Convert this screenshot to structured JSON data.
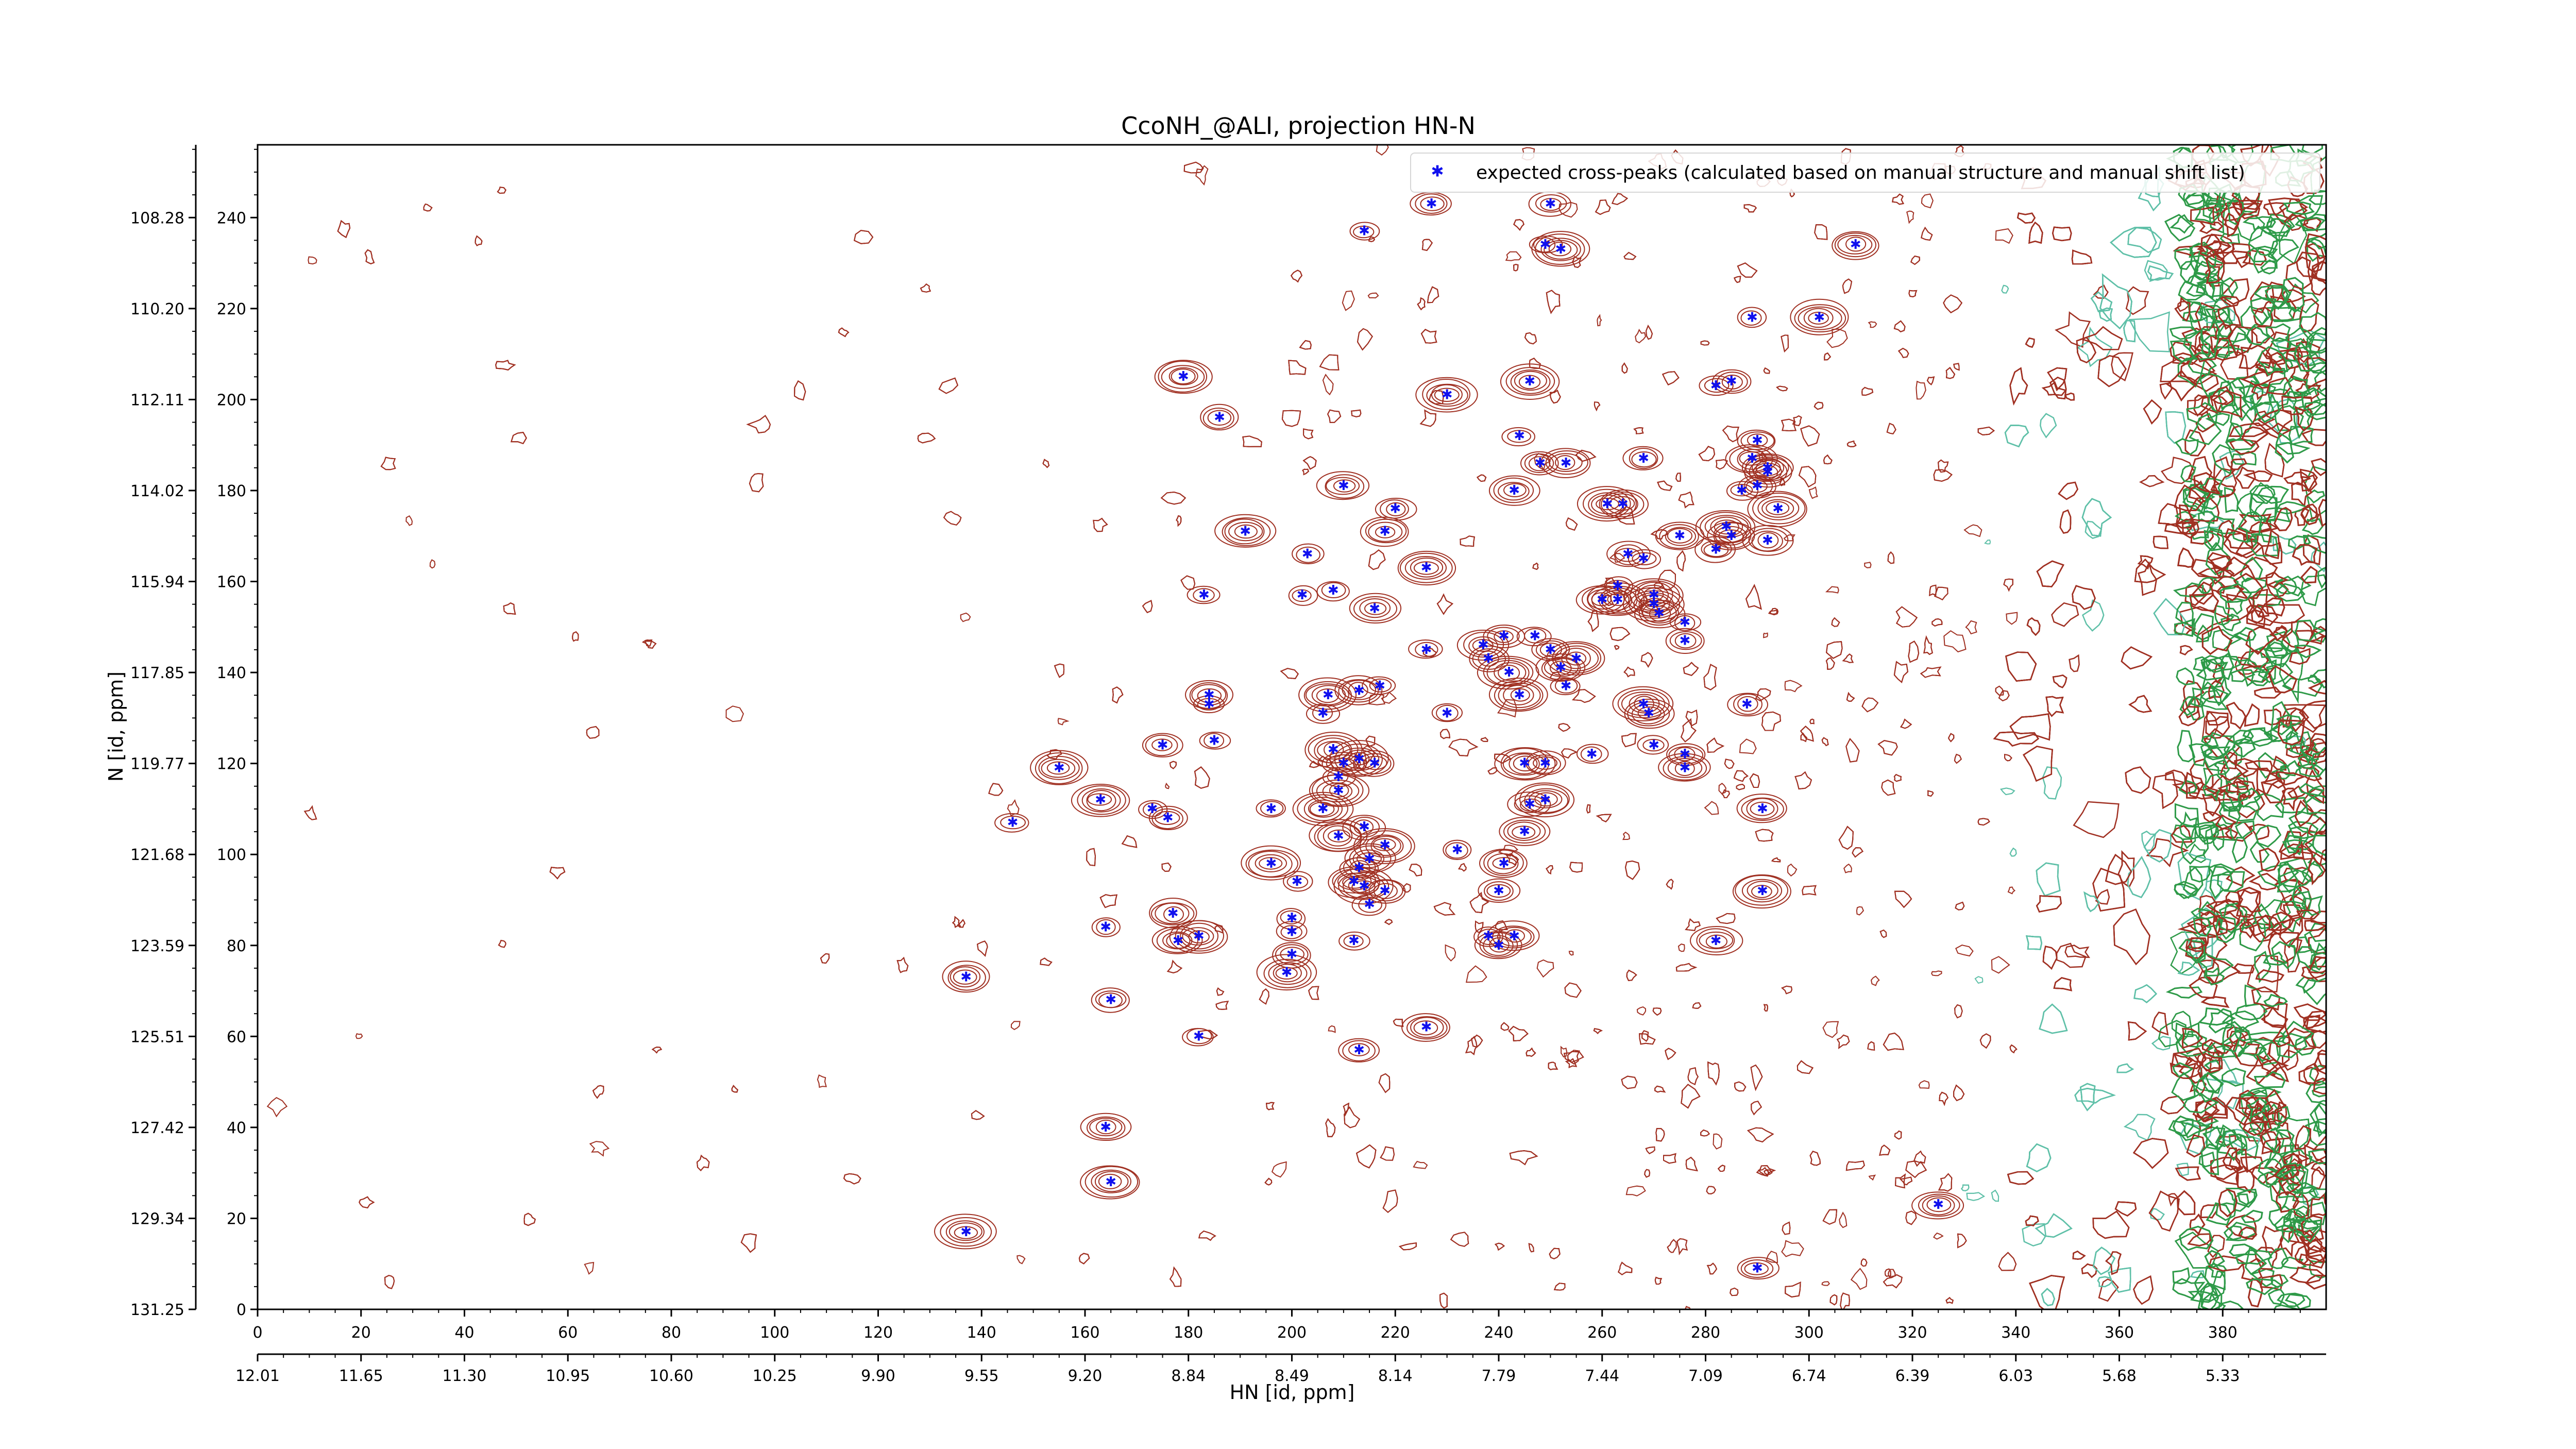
{
  "chart_data": {
    "type": "scatter",
    "title": "CcoNH_@ALI, projection HN-N",
    "xlabel": "HN [id, ppm]",
    "ylabel": "N [id, ppm]",
    "xlim": [
      0,
      400
    ],
    "ylim": [
      0,
      256
    ],
    "x_ticks": [
      0,
      20,
      40,
      60,
      80,
      100,
      120,
      140,
      160,
      180,
      200,
      220,
      240,
      260,
      280,
      300,
      320,
      340,
      360,
      380
    ],
    "x_ppm_ticks": [
      "12.01",
      "11.65",
      "11.30",
      "10.95",
      "10.60",
      "10.25",
      "9.90",
      "9.55",
      "9.20",
      "8.84",
      "8.49",
      "8.14",
      "7.79",
      "7.44",
      "7.09",
      "6.74",
      "6.39",
      "6.03",
      "5.68",
      "5.33"
    ],
    "y_ticks": [
      0,
      20,
      40,
      60,
      80,
      100,
      120,
      140,
      160,
      180,
      200,
      220,
      240
    ],
    "y_ppm_ticks": [
      "131.25",
      "129.34",
      "127.42",
      "125.51",
      "123.59",
      "121.68",
      "119.77",
      "117.85",
      "115.94",
      "114.02",
      "112.11",
      "110.20",
      "108.28"
    ],
    "grid": false,
    "legend_position": "top-right",
    "colors": {
      "peaks": "#1010ee",
      "contour_positive": "#a03022",
      "contour_negative": "#2e9a48",
      "contour_faint": "#5fc0a8",
      "axis": "#000000"
    },
    "series": [
      {
        "name": "expected cross-peaks (calculated based on manual structure and manual shift list)",
        "points": [
          [
            137,
            17
          ],
          [
            165,
            28
          ],
          [
            164,
            40
          ],
          [
            182,
            60
          ],
          [
            165,
            68
          ],
          [
            137,
            73
          ],
          [
            200,
            78
          ],
          [
            199,
            74
          ],
          [
            164,
            84
          ],
          [
            178,
            81
          ],
          [
            182,
            82
          ],
          [
            177,
            87
          ],
          [
            200,
            86
          ],
          [
            200,
            83
          ],
          [
            212,
            81
          ],
          [
            213,
            57
          ],
          [
            226,
            62
          ],
          [
            196,
            98
          ],
          [
            201,
            94
          ],
          [
            209,
            104
          ],
          [
            212,
            94
          ],
          [
            214,
            93
          ],
          [
            215,
            89
          ],
          [
            218,
            92
          ],
          [
            215,
            99
          ],
          [
            218,
            102
          ],
          [
            213,
            97
          ],
          [
            214,
            106
          ],
          [
            210,
            120
          ],
          [
            208,
            123
          ],
          [
            213,
            121
          ],
          [
            216,
            120
          ],
          [
            196,
            110
          ],
          [
            206,
            110
          ],
          [
            209,
            114
          ],
          [
            209,
            117
          ],
          [
            163,
            112
          ],
          [
            155,
            119
          ],
          [
            146,
            107
          ],
          [
            173,
            110
          ],
          [
            176,
            108
          ],
          [
            185,
            125
          ],
          [
            175,
            124
          ],
          [
            184,
            135
          ],
          [
            184,
            133
          ],
          [
            206,
            131
          ],
          [
            207,
            135
          ],
          [
            213,
            136
          ],
          [
            217,
            137
          ],
          [
            230,
            131
          ],
          [
            226,
            145
          ],
          [
            216,
            154
          ],
          [
            202,
            157
          ],
          [
            208,
            158
          ],
          [
            203,
            166
          ],
          [
            218,
            171
          ],
          [
            210,
            181
          ],
          [
            220,
            176
          ],
          [
            226,
            163
          ],
          [
            183,
            157
          ],
          [
            191,
            171
          ],
          [
            186,
            196
          ],
          [
            179,
            205
          ],
          [
            230,
            201
          ],
          [
            214,
            237
          ],
          [
            227,
            243
          ],
          [
            250,
            243
          ],
          [
            249,
            234
          ],
          [
            252,
            233
          ],
          [
            246,
            204
          ],
          [
            244,
            192
          ],
          [
            243,
            180
          ],
          [
            248,
            186
          ],
          [
            253,
            186
          ],
          [
            261,
            177
          ],
          [
            264,
            177
          ],
          [
            268,
            187
          ],
          [
            287,
            180
          ],
          [
            289,
            187
          ],
          [
            290,
            191
          ],
          [
            292,
            185
          ],
          [
            285,
            204
          ],
          [
            282,
            203
          ],
          [
            290,
            181
          ],
          [
            302,
            218
          ],
          [
            289,
            218
          ],
          [
            309,
            234
          ],
          [
            292,
            184
          ],
          [
            294,
            176
          ],
          [
            292,
            169
          ],
          [
            282,
            167
          ],
          [
            284,
            172
          ],
          [
            288,
            133
          ],
          [
            291,
            110
          ],
          [
            291,
            92
          ],
          [
            282,
            81
          ],
          [
            290,
            9
          ],
          [
            325,
            23
          ],
          [
            243,
            82
          ],
          [
            232,
            101
          ],
          [
            238,
            82
          ],
          [
            240,
            92
          ],
          [
            240,
            80
          ],
          [
            241,
            98
          ],
          [
            245,
            105
          ],
          [
            246,
            111
          ],
          [
            249,
            112
          ],
          [
            249,
            120
          ],
          [
            245,
            120
          ],
          [
            244,
            135
          ],
          [
            242,
            140
          ],
          [
            241,
            148
          ],
          [
            238,
            143
          ],
          [
            237,
            146
          ],
          [
            247,
            148
          ],
          [
            250,
            145
          ],
          [
            252,
            141
          ],
          [
            255,
            143
          ],
          [
            253,
            137
          ],
          [
            258,
            122
          ],
          [
            270,
            124
          ],
          [
            276,
            119
          ],
          [
            276,
            122
          ],
          [
            269,
            131
          ],
          [
            268,
            133
          ],
          [
            271,
            153
          ],
          [
            270,
            155
          ],
          [
            276,
            147
          ],
          [
            276,
            151
          ],
          [
            270,
            157
          ],
          [
            263,
            156
          ],
          [
            260,
            156
          ],
          [
            263,
            159
          ],
          [
            268,
            165
          ],
          [
            265,
            166
          ],
          [
            275,
            170
          ],
          [
            285,
            170
          ]
        ]
      }
    ]
  }
}
